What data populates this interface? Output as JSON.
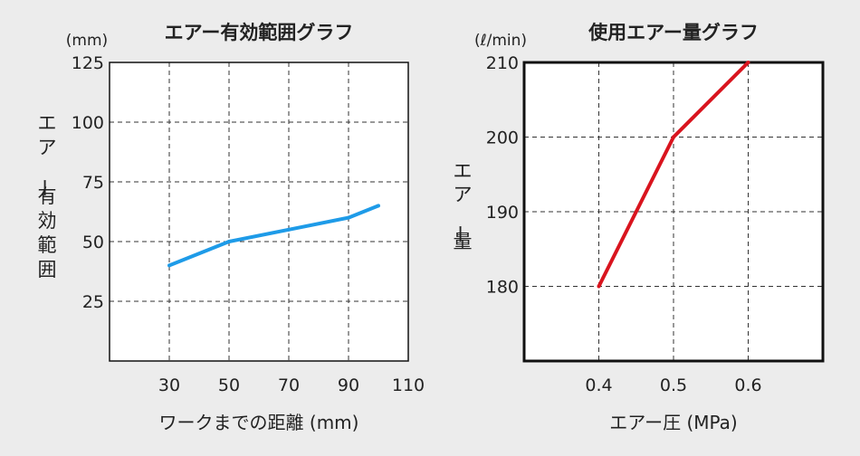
{
  "chart_data": [
    {
      "type": "line",
      "title": "エアー有効範囲グラフ",
      "unit_label": "(mm)",
      "xlabel": "ワークまでの距離 (mm)",
      "ylabel": "エアー有効範囲",
      "x_ticks": [
        30,
        50,
        70,
        90,
        110
      ],
      "y_ticks": [
        25,
        50,
        75,
        100,
        125
      ],
      "xlim": [
        10,
        110
      ],
      "ylim": [
        0,
        125
      ],
      "grid": true,
      "series": [
        {
          "x": [
            30,
            50,
            70,
            90,
            100
          ],
          "y": [
            40,
            50,
            55,
            60,
            65
          ],
          "color": "#1e9be8"
        }
      ]
    },
    {
      "type": "line",
      "title": "使用エアー量グラフ",
      "unit_label": "(ℓ/min)",
      "xlabel": "エアー圧 (MPa)",
      "ylabel": "エアー量",
      "x_ticks": [
        "0.4",
        "0.5",
        "0.6"
      ],
      "y_ticks": [
        180,
        190,
        200,
        210
      ],
      "xlim": [
        0.3,
        0.7
      ],
      "ylim": [
        170,
        210
      ],
      "grid": true,
      "series": [
        {
          "x": [
            0.4,
            0.5,
            0.6
          ],
          "y": [
            180,
            200,
            210
          ],
          "color": "#d9141e"
        }
      ]
    }
  ]
}
